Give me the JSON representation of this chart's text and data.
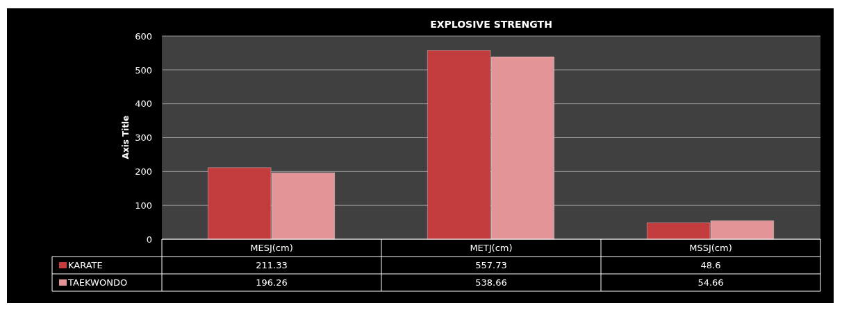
{
  "chart_data": {
    "type": "bar",
    "title": "EXPLOSIVE STRENGTH",
    "ylabel": "Axis Title",
    "categories": [
      "MESJ(cm)",
      "METJ(cm)",
      "MSSJ(cm)"
    ],
    "series": [
      {
        "name": "KARATE",
        "color": "#c23b3d",
        "values": [
          211.33,
          557.73,
          48.6
        ]
      },
      {
        "name": "TAEKWONDO",
        "color": "#e39496",
        "values": [
          196.26,
          538.66,
          54.66
        ]
      }
    ],
    "ylim": [
      0,
      600
    ],
    "yticks": [
      0,
      100,
      200,
      300,
      400,
      500,
      600
    ],
    "grid": "y",
    "legend": "bottom",
    "data_labels": true
  }
}
